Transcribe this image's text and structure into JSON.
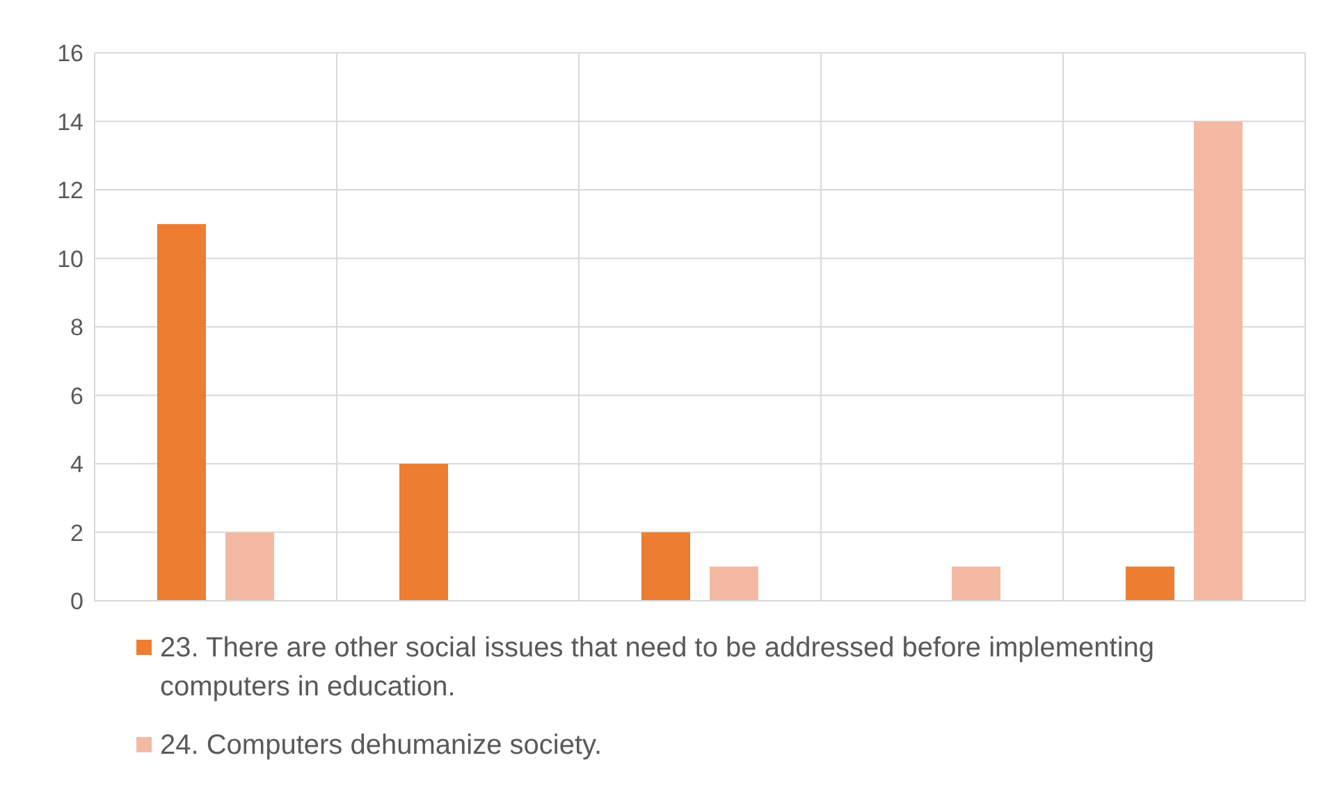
{
  "chart_data": {
    "type": "bar",
    "categories": [
      null,
      null,
      null,
      null,
      null
    ],
    "series": [
      {
        "name": "23. There are other social issues that need to be addressed before implementing computers in education.",
        "color": "#ed7d31",
        "values": [
          11,
          4,
          2,
          0,
          1
        ]
      },
      {
        "name": "24. Computers dehumanize society.",
        "color": "#f4b9a3",
        "values": [
          2,
          0,
          1,
          1,
          14
        ]
      }
    ],
    "ylim": [
      0,
      16
    ],
    "yticks": [
      0,
      2,
      4,
      6,
      8,
      10,
      12,
      14,
      16
    ],
    "grid": true,
    "legend": "bottom"
  }
}
